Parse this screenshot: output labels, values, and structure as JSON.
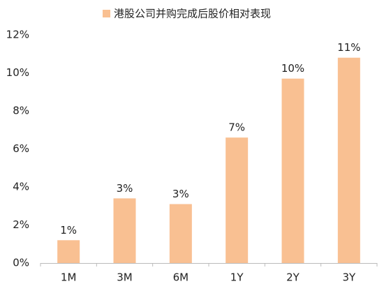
{
  "chart_data": {
    "type": "bar",
    "categories": [
      "1M",
      "3M",
      "6M",
      "1Y",
      "2Y",
      "3Y"
    ],
    "series": [
      {
        "name": "港股公司并购完成后股价相对表现",
        "color": "#f9c092",
        "values": [
          1.2,
          3.4,
          3.1,
          6.6,
          9.7,
          10.8
        ],
        "value_labels": [
          "1%",
          "3%",
          "3%",
          "7%",
          "10%",
          "11%"
        ]
      }
    ],
    "ylim": [
      0,
      12
    ],
    "yticks": [
      {
        "value": 0,
        "label": "0%"
      },
      {
        "value": 2,
        "label": "2%"
      },
      {
        "value": 4,
        "label": "4%"
      },
      {
        "value": 6,
        "label": "6%"
      },
      {
        "value": 8,
        "label": "8%"
      },
      {
        "value": 10,
        "label": "10%"
      },
      {
        "value": 12,
        "label": "12%"
      }
    ],
    "grid": false,
    "legend": "top"
  }
}
